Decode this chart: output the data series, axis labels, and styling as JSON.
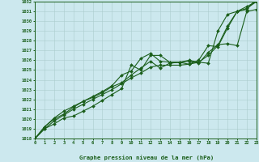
{
  "title": "Graphe pression niveau de la mer (hPa)",
  "xlabel_ticks": [
    0,
    1,
    2,
    3,
    4,
    5,
    6,
    7,
    8,
    9,
    10,
    11,
    12,
    13,
    14,
    15,
    16,
    17,
    18,
    19,
    20,
    21,
    22,
    23
  ],
  "ylim": [
    1018,
    1032
  ],
  "yticks": [
    1018,
    1019,
    1020,
    1021,
    1022,
    1023,
    1024,
    1025,
    1026,
    1027,
    1028,
    1029,
    1030,
    1031,
    1032
  ],
  "background_color": "#cce8ee",
  "grid_color": "#aacccc",
  "line_color": "#1a5e1a",
  "series": [
    [
      1018.0,
      1019.0,
      1019.5,
      1020.1,
      1020.3,
      1020.8,
      1021.3,
      1021.9,
      1022.5,
      1023.1,
      1025.5,
      1025.0,
      1026.5,
      1026.5,
      1025.8,
      1025.8,
      1026.0,
      1025.8,
      1025.7,
      1029.0,
      1030.7,
      1031.0,
      1031.5,
      1032.0
    ],
    [
      1018.0,
      1019.2,
      1020.0,
      1020.5,
      1021.2,
      1021.8,
      1022.3,
      1022.8,
      1023.4,
      1024.5,
      1024.9,
      1026.2,
      1026.7,
      1025.9,
      1025.8,
      1025.8,
      1025.9,
      1025.7,
      1026.8,
      1027.6,
      1027.7,
      1027.5,
      1031.0,
      1031.2
    ],
    [
      1018.0,
      1019.2,
      1020.1,
      1020.8,
      1021.3,
      1021.8,
      1022.2,
      1022.7,
      1023.3,
      1023.7,
      1024.5,
      1025.2,
      1025.9,
      1025.2,
      1025.7,
      1025.8,
      1025.6,
      1026.0,
      1027.5,
      1027.4,
      1029.3,
      1031.0,
      1031.2,
      1032.3
    ],
    [
      1018.0,
      1019.0,
      1019.8,
      1020.4,
      1021.0,
      1021.5,
      1022.0,
      1022.5,
      1023.0,
      1023.6,
      1024.2,
      1024.7,
      1025.3,
      1025.5,
      1025.5,
      1025.5,
      1025.6,
      1025.8,
      1026.5,
      1027.5,
      1029.5,
      1031.0,
      1031.3,
      1032.0
    ]
  ]
}
